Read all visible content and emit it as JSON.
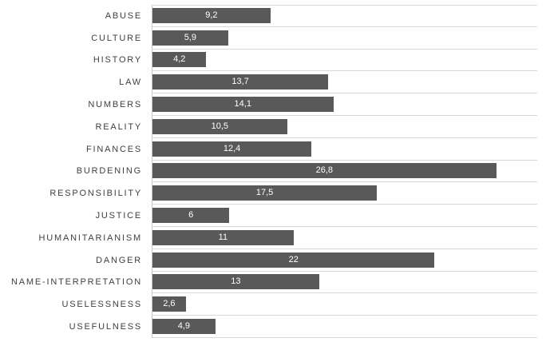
{
  "chart_data": {
    "type": "bar",
    "orientation": "horizontal",
    "title": "",
    "xlabel": "",
    "ylabel": "",
    "categories": [
      "ABUSE",
      "CULTURE",
      "HISTORY",
      "LAW",
      "NUMBERS",
      "REALITY",
      "FINANCES",
      "BURDENING",
      "RESPONSIBILITY",
      "JUSTICE",
      "HUMANITARIANISM",
      "DANGER",
      "NAME-INTERPRETATION",
      "USELESSNESS",
      "USEFULNESS"
    ],
    "values": [
      9.2,
      5.9,
      4.2,
      13.7,
      14.1,
      10.5,
      12.4,
      26.8,
      17.5,
      6,
      11,
      22,
      13,
      2.6,
      4.9
    ],
    "value_labels": [
      "9,2",
      "5,9",
      "4,2",
      "13,7",
      "14,1",
      "10,5",
      "12,4",
      "26,8",
      "17,5",
      "6",
      "11",
      "22",
      "13",
      "2,6",
      "4,9"
    ],
    "xlim": [
      0,
      30
    ],
    "grid": true,
    "gridline_orientation": "horizontal-row-separators",
    "legend": false,
    "value_label_position": "center-inside",
    "colors": {
      "bar": "#595959",
      "category_label": "#404040",
      "value_label": "#ffffff",
      "gridline": "#d9d9d9",
      "axis_line": "#c6c6c6",
      "background": "#ffffff"
    }
  }
}
